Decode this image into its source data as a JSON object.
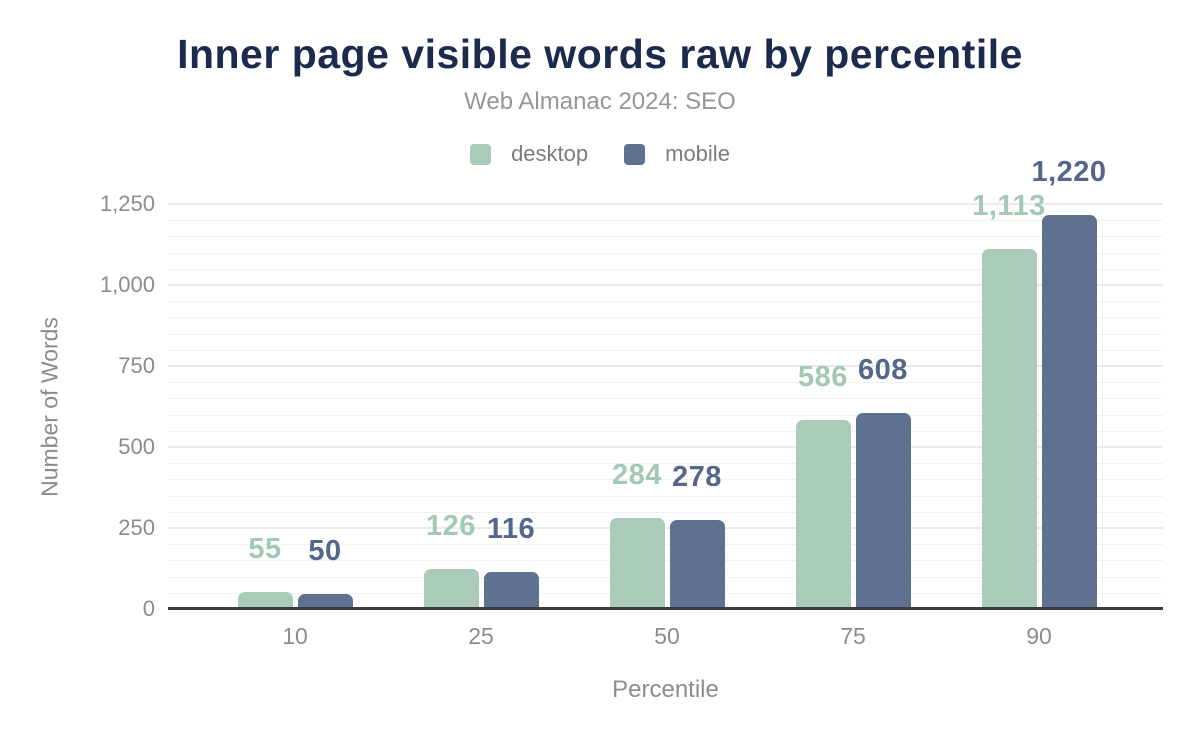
{
  "chart_data": {
    "type": "bar",
    "title": "Inner page visible words raw by percentile",
    "subtitle": "Web Almanac 2024: SEO",
    "xlabel": "Percentile",
    "ylabel": "Number of Words",
    "categories": [
      "10",
      "25",
      "50",
      "75",
      "90"
    ],
    "series": [
      {
        "name": "desktop",
        "values": [
          55,
          126,
          284,
          586,
          1113
        ],
        "labels": [
          "55",
          "126",
          "284",
          "586",
          "1,113"
        ],
        "color": "#a9cbb8",
        "label_color": "#a3c9b5"
      },
      {
        "name": "mobile",
        "values": [
          50,
          116,
          278,
          608,
          1220
        ],
        "labels": [
          "50",
          "116",
          "278",
          "608",
          "1,220"
        ],
        "color": "#5f7190",
        "label_color": "#54678a"
      }
    ],
    "ylim": [
      0,
      1250
    ],
    "y_major_step": 250,
    "y_minor_step": 50,
    "y_tick_labels": [
      "0",
      "250",
      "500",
      "750",
      "1,000",
      "1,250"
    ],
    "grid": "horizontal-major-and-minor",
    "legend_position": "top",
    "colors": {
      "title": "#1c2b4d",
      "subtitle": "#969696",
      "axis_text": "#8c8c8c",
      "axis_line": "#3a3a40",
      "grid_major": "#ebebeb",
      "grid_minor": "#f2f2f2",
      "background": "#ffffff"
    }
  }
}
